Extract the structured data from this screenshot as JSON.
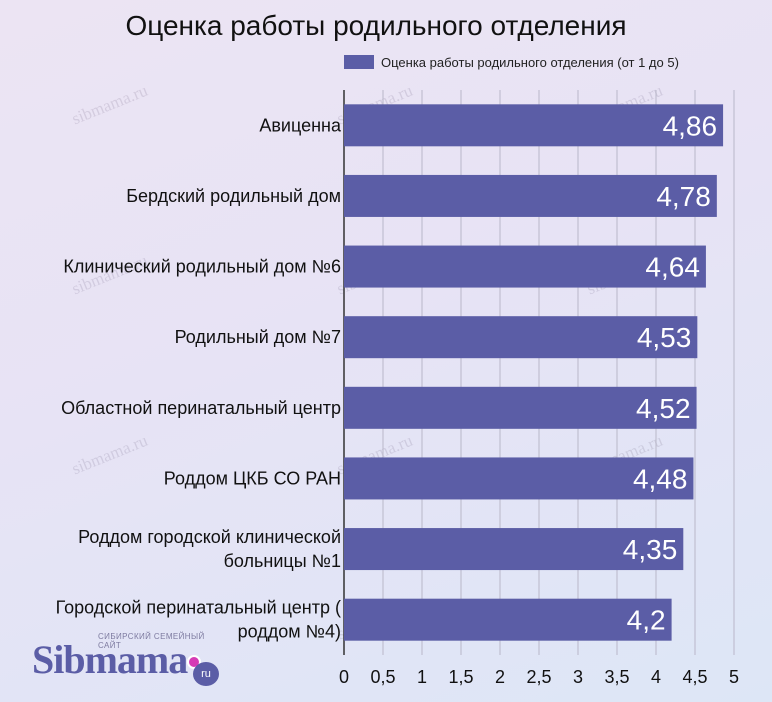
{
  "chart_data": {
    "type": "bar",
    "orientation": "horizontal",
    "title": "Оценка работы родильного отделения",
    "categories": [
      "Авиценна",
      "Бердский родильный дом",
      "Клинический родильный дом №6",
      "Родильный дом №7",
      "Областной перинатальный центр",
      "Роддом ЦКБ СО РАН",
      "Роддом городской клинической больницы №1",
      "Городской перинатальный центр ( роддом №4)"
    ],
    "category_lines": [
      [
        "Авиценна"
      ],
      [
        "Бердский родильный дом"
      ],
      [
        "Клинический родильный дом №6"
      ],
      [
        "Родильный дом №7"
      ],
      [
        "Областной перинатальный центр"
      ],
      [
        "Роддом ЦКБ СО РАН"
      ],
      [
        "Роддом городской клинической",
        "больницы №1"
      ],
      [
        "Городской перинатальный центр (",
        "роддом №4)"
      ]
    ],
    "series": [
      {
        "name": "Оценка работы родильного отделения (от 1 до 5)",
        "values": [
          4.86,
          4.78,
          4.64,
          4.53,
          4.52,
          4.48,
          4.35,
          4.2
        ],
        "labels": [
          "4,86",
          "4,78",
          "4,64",
          "4,53",
          "4,52",
          "4,48",
          "4,35",
          "4,2"
        ]
      }
    ],
    "xlim": [
      0,
      5
    ],
    "xticks": [
      0,
      0.5,
      1,
      1.5,
      2,
      2.5,
      3,
      3.5,
      4,
      4.5,
      5
    ],
    "xtick_labels": [
      "0",
      "0,5",
      "1",
      "1,5",
      "2",
      "2,5",
      "3",
      "3,5",
      "4",
      "4,5",
      "5"
    ],
    "grid": "vertical",
    "legend_position": "top-right",
    "bar_color": "#5b5da6"
  },
  "watermark_text": "sibmama.ru",
  "logo": {
    "tagline": "СИБИРСКИЙ СЕМЕЙНЫЙ САЙТ",
    "word": "Sibmama",
    "suffix": "ru"
  }
}
